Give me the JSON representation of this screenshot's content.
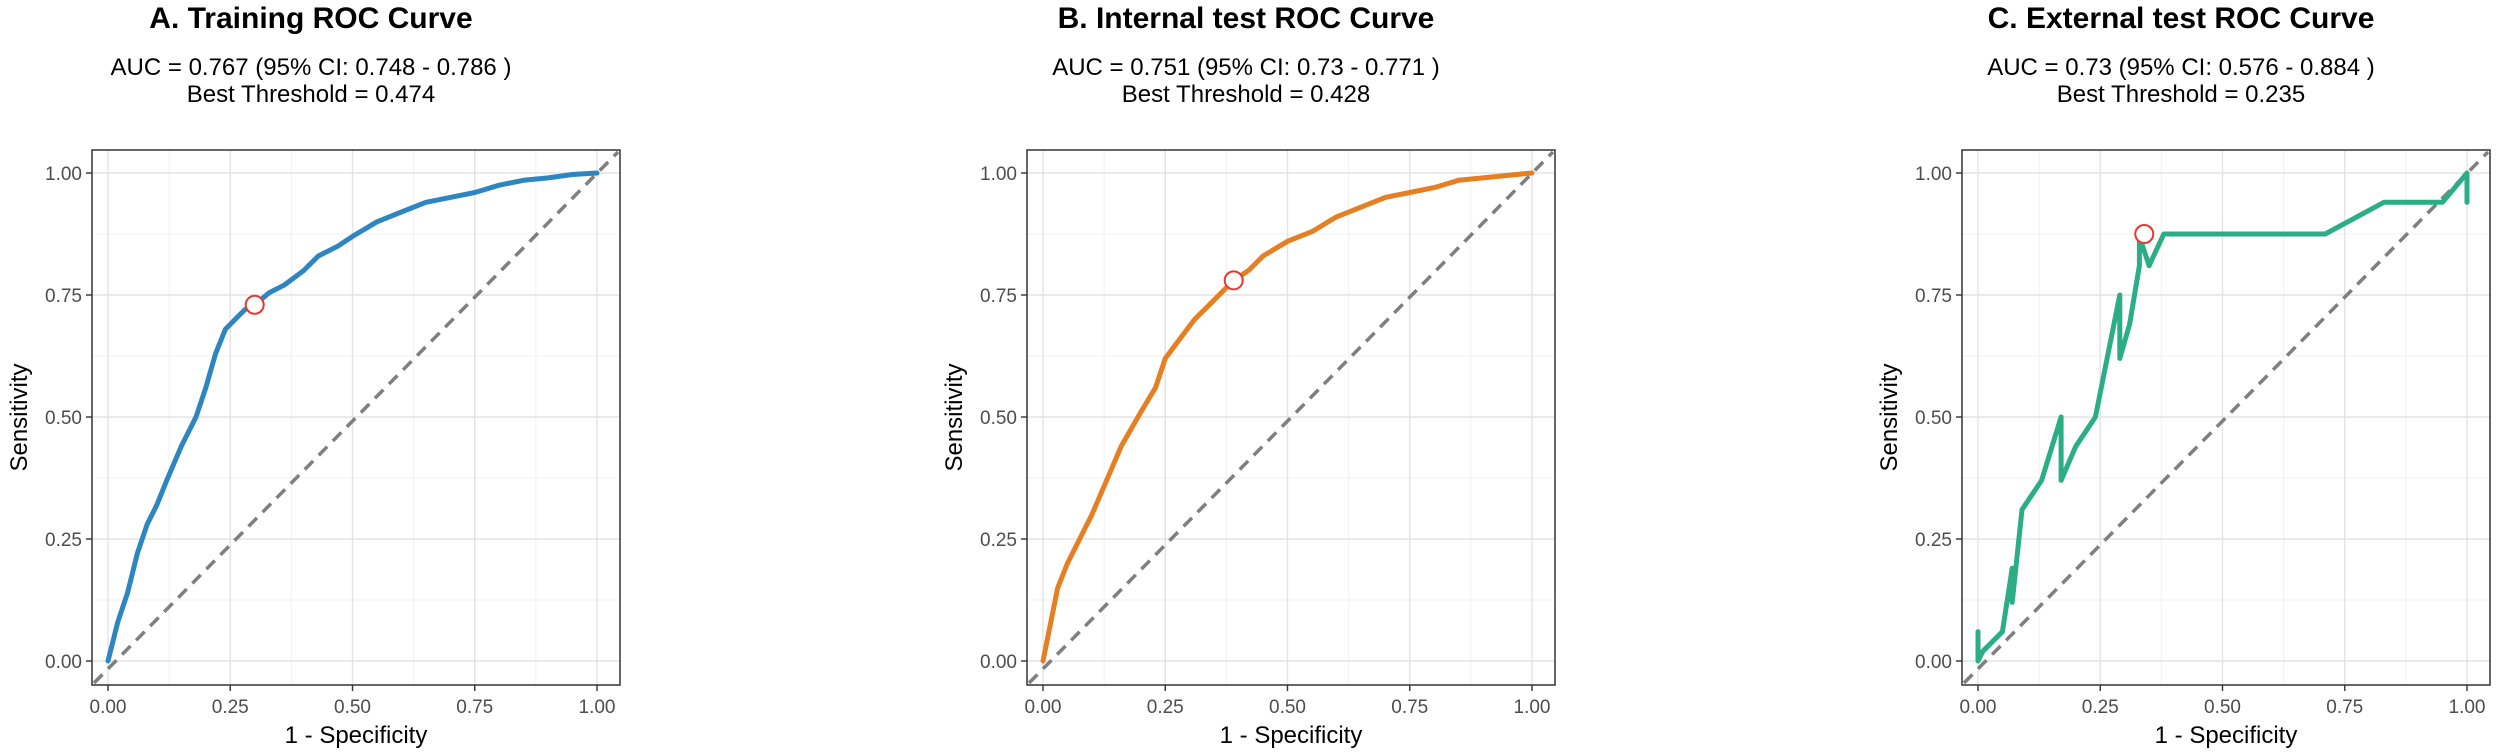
{
  "chart_data": [
    {
      "type": "line",
      "title": "A. Training ROC Curve",
      "auc_line": "AUC = 0.767 (95% CI: 0.748 - 0.786 )",
      "threshold_line": "Best Threshold = 0.474",
      "xlabel": "1 - Specificity",
      "ylabel": "Sensitivity",
      "xlim": [
        0,
        1
      ],
      "ylim": [
        0,
        1
      ],
      "xticks": [
        "0.00",
        "0.25",
        "0.50",
        "0.75",
        "1.00"
      ],
      "yticks": [
        "0.00",
        "0.25",
        "0.50",
        "0.75",
        "1.00"
      ],
      "grid": true,
      "line_color": "#2E86C1",
      "best_point": {
        "x": 0.3,
        "y": 0.73
      },
      "series": [
        {
          "x": [
            0,
            0.01,
            0.02,
            0.04,
            0.06,
            0.08,
            0.1,
            0.12,
            0.15,
            0.18,
            0.2,
            0.22,
            0.24,
            0.26,
            0.28,
            0.3,
            0.33,
            0.36,
            0.4,
            0.43,
            0.47,
            0.5,
            0.55,
            0.6,
            0.65,
            0.7,
            0.75,
            0.8,
            0.85,
            0.9,
            0.95,
            1.0
          ],
          "y": [
            0,
            0.04,
            0.08,
            0.14,
            0.22,
            0.28,
            0.32,
            0.37,
            0.44,
            0.5,
            0.56,
            0.63,
            0.68,
            0.7,
            0.72,
            0.73,
            0.755,
            0.77,
            0.8,
            0.83,
            0.85,
            0.87,
            0.9,
            0.92,
            0.94,
            0.95,
            0.96,
            0.975,
            0.985,
            0.99,
            0.997,
            1.0
          ]
        }
      ],
      "diagonal": true
    },
    {
      "type": "line",
      "title": "B. Internal test ROC Curve",
      "auc_line": "AUC = 0.751 (95% CI: 0.73 - 0.771 )",
      "threshold_line": "Best Threshold = 0.428",
      "xlabel": "1 - Specificity",
      "ylabel": "Sensitivity",
      "xlim": [
        0,
        1
      ],
      "ylim": [
        0,
        1
      ],
      "xticks": [
        "0.00",
        "0.25",
        "0.50",
        "0.75",
        "1.00"
      ],
      "yticks": [
        "0.00",
        "0.25",
        "0.50",
        "0.75",
        "1.00"
      ],
      "grid": true,
      "line_color": "#E67E22",
      "best_point": {
        "x": 0.39,
        "y": 0.78
      },
      "series": [
        {
          "x": [
            0,
            0.01,
            0.02,
            0.03,
            0.05,
            0.07,
            0.1,
            0.13,
            0.16,
            0.2,
            0.23,
            0.25,
            0.28,
            0.31,
            0.34,
            0.37,
            0.39,
            0.42,
            0.45,
            0.5,
            0.55,
            0.6,
            0.65,
            0.7,
            0.75,
            0.8,
            0.85,
            0.9,
            0.95,
            1.0
          ],
          "y": [
            0,
            0.05,
            0.1,
            0.15,
            0.2,
            0.24,
            0.3,
            0.37,
            0.44,
            0.51,
            0.56,
            0.62,
            0.66,
            0.7,
            0.73,
            0.76,
            0.78,
            0.8,
            0.83,
            0.86,
            0.88,
            0.91,
            0.93,
            0.95,
            0.96,
            0.97,
            0.985,
            0.99,
            0.995,
            1.0
          ]
        }
      ],
      "diagonal": true
    },
    {
      "type": "line",
      "title": "C. External test ROC Curve",
      "auc_line": "AUC = 0.73 (95% CI: 0.576 - 0.884 )",
      "threshold_line": "Best Threshold = 0.235",
      "xlabel": "1 - Specificity",
      "ylabel": "Sensitivity",
      "xlim": [
        0,
        1
      ],
      "ylim": [
        0,
        1
      ],
      "xticks": [
        "0.00",
        "0.25",
        "0.50",
        "0.75",
        "1.00"
      ],
      "yticks": [
        "0.00",
        "0.25",
        "0.50",
        "0.75",
        "1.00"
      ],
      "grid": true,
      "line_color": "#2BAE86",
      "best_point": {
        "x": 0.34,
        "y": 0.875
      },
      "series": [
        {
          "x": [
            0,
            0,
            0.01,
            0.05,
            0.07,
            0.07,
            0.09,
            0.13,
            0.17,
            0.17,
            0.2,
            0.24,
            0.29,
            0.29,
            0.31,
            0.33,
            0.33,
            0.35,
            0.38,
            0.5,
            0.6,
            0.71,
            0.83,
            0.95,
            1.0,
            1.0
          ],
          "y": [
            0.06,
            0,
            0.02,
            0.06,
            0.19,
            0.12,
            0.31,
            0.37,
            0.5,
            0.37,
            0.44,
            0.5,
            0.75,
            0.62,
            0.69,
            0.81,
            0.87,
            0.81,
            0.875,
            0.875,
            0.875,
            0.875,
            0.94,
            0.94,
            1.0,
            0.94
          ]
        }
      ],
      "diagonal": true
    }
  ]
}
